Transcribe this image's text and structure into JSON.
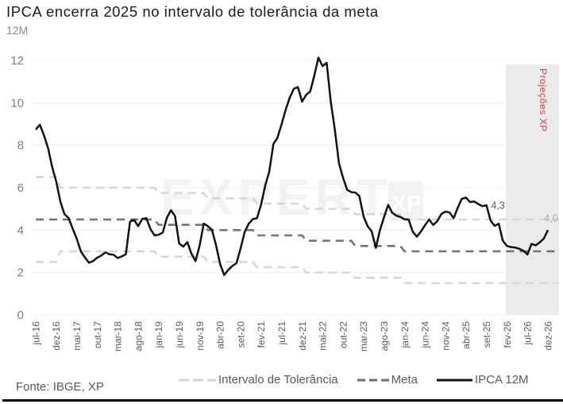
{
  "header": {
    "title": "IPCA encerra 2025 no intervalo de tolerância da meta",
    "subtitle": "12M"
  },
  "footer": {
    "source": "Fonte: IBGE, XP"
  },
  "legend": [
    {
      "label": "Intervalo de Tolerância",
      "style": "dash-light"
    },
    {
      "label": "Meta",
      "style": "dash-dark"
    },
    {
      "label": "IPCA 12M",
      "style": "solid-black"
    }
  ],
  "watermark": {
    "text": "EXPERT",
    "badge": "XP"
  },
  "annotations": {
    "projections": "Projeções XP",
    "value_2025": "4,3",
    "value_2026": "4,0"
  },
  "colors": {
    "ipca_line": "#121212",
    "meta_line": "#747474",
    "tolerance_line": "#d7d7d7",
    "projection_shade": "#ebebeb",
    "projection_label": "#e23a3a"
  },
  "chart_data": {
    "type": "line",
    "title": "IPCA encerra 2025 no intervalo de tolerância da meta",
    "subtitle": "12M",
    "ylim": [
      0,
      12
    ],
    "y_ticks": [
      0,
      2,
      4,
      6,
      8,
      10,
      12
    ],
    "x_tick_labels": [
      "jul-16",
      "dez-16",
      "mai-17",
      "out-17",
      "mar-18",
      "ago-18",
      "jan-19",
      "jun-19",
      "nov-19",
      "abr-20",
      "set-20",
      "fev-21",
      "jul-21",
      "dez-21",
      "mai-22",
      "out-22",
      "mar-23",
      "ago-23",
      "jan-24",
      "jun-24",
      "nov-24",
      "abr-25",
      "set-25",
      "fev-26",
      "jul-26",
      "dez-26"
    ],
    "x_start": "jul-16",
    "x_end": "dez-26",
    "months_per_point": 1,
    "projection_start": "jan-26",
    "series": [
      {
        "name": "IPCA 12M",
        "values": [
          8.74,
          8.97,
          8.48,
          7.87,
          6.99,
          6.29,
          5.35,
          4.76,
          4.57,
          4.08,
          3.6,
          3.0,
          2.71,
          2.46,
          2.54,
          2.7,
          2.8,
          2.95,
          2.86,
          2.84,
          2.68,
          2.76,
          2.86,
          4.39,
          4.48,
          4.19,
          4.53,
          4.56,
          4.05,
          3.75,
          3.78,
          3.89,
          4.58,
          4.94,
          4.66,
          3.37,
          3.22,
          3.43,
          2.89,
          2.54,
          3.27,
          4.31,
          4.19,
          4.01,
          3.3,
          2.4,
          1.88,
          2.13,
          2.31,
          2.44,
          3.14,
          3.92,
          4.31,
          4.52,
          4.56,
          5.2,
          6.1,
          6.76,
          8.06,
          8.35,
          8.99,
          9.68,
          10.25,
          10.67,
          10.74,
          10.06,
          10.38,
          10.54,
          11.3,
          12.13,
          11.73,
          11.89,
          10.07,
          8.73,
          7.17,
          6.47,
          5.9,
          5.79,
          5.77,
          5.6,
          4.65,
          4.18,
          3.94,
          3.16,
          3.99,
          4.61,
          5.19,
          4.82,
          4.68,
          4.62,
          4.51,
          4.5,
          3.93,
          3.69,
          3.93,
          4.23,
          4.5,
          4.24,
          4.42,
          4.76,
          4.87,
          4.83,
          4.56,
          5.06,
          5.48,
          5.53,
          5.32,
          5.35,
          5.23,
          5.13,
          5.17,
          4.45,
          4.2,
          4.3,
          3.5,
          3.25,
          3.2,
          3.18,
          3.12,
          3.03,
          2.85,
          3.35,
          3.28,
          3.42,
          3.6,
          4.0
        ]
      },
      {
        "name": "Meta",
        "yearly": {
          "2016": 4.5,
          "2017": 4.5,
          "2018": 4.5,
          "2019": 4.25,
          "2020": 4.0,
          "2021": 3.75,
          "2022": 3.5,
          "2023": 3.25,
          "2024": 3.0,
          "2025": 3.0,
          "2026": 3.0
        }
      },
      {
        "name": "Intervalo de Tolerância (superior)",
        "yearly": {
          "2016": 6.5,
          "2017": 6.0,
          "2018": 6.0,
          "2019": 5.75,
          "2020": 5.5,
          "2021": 5.25,
          "2022": 5.0,
          "2023": 4.75,
          "2024": 4.5,
          "2025": 4.5,
          "2026": 4.5
        }
      },
      {
        "name": "Intervalo de Tolerância (inferior)",
        "yearly": {
          "2016": 2.5,
          "2017": 3.0,
          "2018": 3.0,
          "2019": 2.75,
          "2020": 2.5,
          "2021": 2.25,
          "2022": 2.0,
          "2023": 1.75,
          "2024": 1.5,
          "2025": 1.5,
          "2026": 1.5
        }
      }
    ]
  }
}
